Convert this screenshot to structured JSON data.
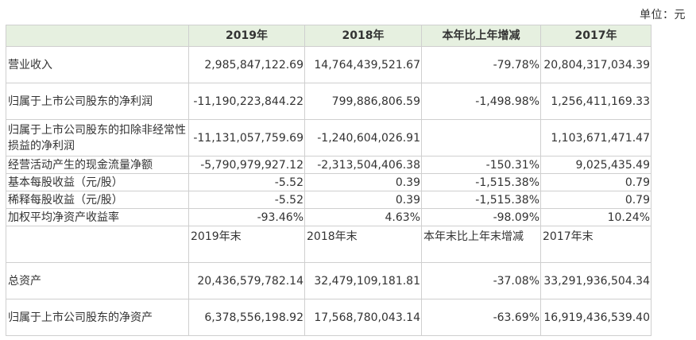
{
  "unit_label": "单位：元",
  "header": {
    "col0": "",
    "col1": "2019年",
    "col2": "2018年",
    "col3": "本年比上年增减",
    "col4": "2017年"
  },
  "rows_top": [
    {
      "label": "营业收入",
      "v2019": "2,985,847,122.69",
      "v2018": "14,764,439,521.67",
      "change": "-79.78%",
      "v2017": "20,804,317,034.39"
    },
    {
      "label": "归属于上市公司股东的净利润",
      "v2019": "-11,190,223,844.22",
      "v2018": "799,886,806.59",
      "change": "-1,498.98%",
      "v2017": "1,256,411,169.33"
    },
    {
      "label": "归属于上市公司股东的扣除非经常性损益的净利润",
      "v2019": "-11,131,057,759.69",
      "v2018": "-1,240,604,026.91",
      "change": "",
      "v2017": "1,103,671,471.47"
    },
    {
      "label": "经营活动产生的现金流量净额",
      "v2019": "-5,790,979,927.12",
      "v2018": "-2,313,504,406.38",
      "change": "-150.31%",
      "v2017": "9,025,435.49"
    },
    {
      "label": "基本每股收益（元/股）",
      "v2019": "-5.52",
      "v2018": "0.39",
      "change": "-1,515.38%",
      "v2017": "0.79"
    },
    {
      "label": "稀释每股收益（元/股）",
      "v2019": "-5.52",
      "v2018": "0.39",
      "change": "-1,515.38%",
      "v2017": "0.79"
    },
    {
      "label": "加权平均净资产收益率",
      "v2019": "-93.46%",
      "v2018": "4.63%",
      "change": "-98.09%",
      "v2017": "10.24%"
    }
  ],
  "subheader": {
    "col0": "",
    "col1": "2019年末",
    "col2": "2018年末",
    "col3": "本年末比上年末增减",
    "col4": "2017年末"
  },
  "rows_bottom": [
    {
      "label": "总资产",
      "v2019": "20,436,579,782.14",
      "v2018": "32,479,109,181.81",
      "change": "-37.08%",
      "v2017": "33,291,936,504.34"
    },
    {
      "label": "归属于上市公司股东的净资产",
      "v2019": "6,378,556,198.92",
      "v2018": "17,568,780,043.14",
      "change": "-63.69%",
      "v2017": "16,919,436,539.40"
    }
  ],
  "colors": {
    "header_bg": "#e6f0e0",
    "border": "#cfcfcf",
    "text": "#333333"
  }
}
